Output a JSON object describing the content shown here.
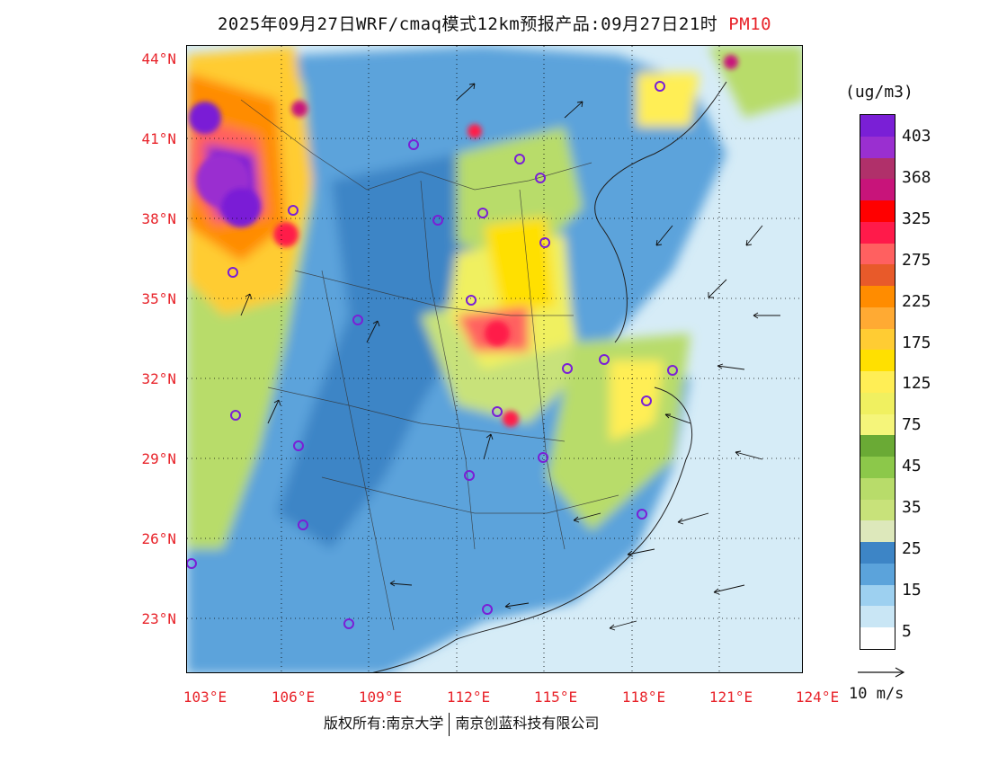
{
  "title": {
    "main": "2025年09月27日WRF/cmaq模式12km预报产品:09月27日21时",
    "pollutant": "PM10"
  },
  "lat_labels": [
    "44°N",
    "41°N",
    "38°N",
    "35°N",
    "32°N",
    "29°N",
    "26°N",
    "23°N"
  ],
  "lon_labels": [
    "103°E",
    "106°E",
    "109°E",
    "112°E",
    "115°E",
    "118°E",
    "121°E",
    "124°E"
  ],
  "colorbar": {
    "unit": "(ug/m3)",
    "labels": [
      "403",
      "368",
      "325",
      "275",
      "225",
      "175",
      "125",
      "75",
      "45",
      "35",
      "25",
      "15",
      "5"
    ],
    "colors": [
      "#7a1fd6",
      "#9a2fd0",
      "#b0306a",
      "#c8147a",
      "#ff0000",
      "#ff1a4a",
      "#ff6060",
      "#e85a2a",
      "#ff8c00",
      "#ffaa33",
      "#ffcc33",
      "#ffe000",
      "#ffee55",
      "#f0f060",
      "#f5f57a",
      "#6aaa35",
      "#8cc84a",
      "#b8dc6a",
      "#c8e27a",
      "#dde8bb",
      "#3d85c6",
      "#5ba3db",
      "#9dd0f0",
      "#c9e6f5",
      "#ffffff"
    ]
  },
  "wind_key": {
    "label": "10 m/s"
  },
  "footer": {
    "left": "版权所有:南京大学",
    "right": "南京创蓝科技有限公司"
  }
}
